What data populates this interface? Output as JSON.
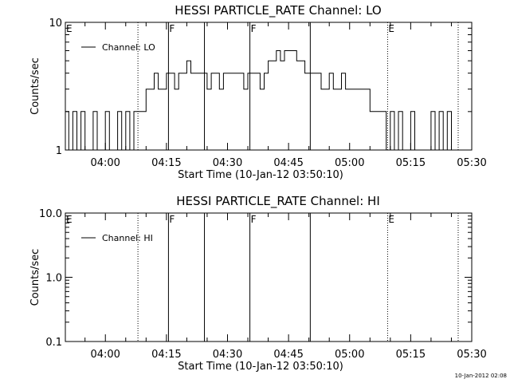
{
  "footer_timestamp": "10-Jan-2012 02:08",
  "chart_data": [
    {
      "type": "line",
      "title": "HESSI PARTICLE_RATE Channel: LO",
      "xlabel": "Start Time (10-Jan-12 03:50:10)",
      "ylabel": "Counts/sec",
      "y_scale": "log",
      "ylim": [
        1,
        10
      ],
      "y_ticks": [
        "1",
        "10"
      ],
      "xlim": [
        "03:50:10",
        "05:30:00"
      ],
      "x_ticks": [
        "04:00",
        "04:15",
        "04:30",
        "04:45",
        "05:00",
        "05:15",
        "05:30"
      ],
      "grid": false,
      "legend_position": "top-left",
      "series": [
        {
          "name": "Channel: LO",
          "x": [
            "03:50",
            "03:51",
            "03:52",
            "03:53",
            "03:54",
            "03:55",
            "03:56",
            "03:57",
            "03:58",
            "03:59",
            "04:00",
            "04:01",
            "04:02",
            "04:03",
            "04:04",
            "04:05",
            "04:06",
            "04:07",
            "04:08",
            "04:09",
            "04:10",
            "04:11",
            "04:12",
            "04:13",
            "04:14",
            "04:15",
            "04:16",
            "04:17",
            "04:18",
            "04:19",
            "04:20",
            "04:21",
            "04:22",
            "04:23",
            "04:24",
            "04:25",
            "04:26",
            "04:27",
            "04:28",
            "04:29",
            "04:30",
            "04:31",
            "04:32",
            "04:33",
            "04:34",
            "04:35",
            "04:36",
            "04:37",
            "04:38",
            "04:39",
            "04:40",
            "04:41",
            "04:42",
            "04:43",
            "04:44",
            "04:45",
            "04:46",
            "04:47",
            "04:48",
            "04:49",
            "04:50",
            "04:51",
            "04:52",
            "04:53",
            "04:54",
            "04:55",
            "04:56",
            "04:57",
            "04:58",
            "04:59",
            "05:00",
            "05:01",
            "05:02",
            "05:03",
            "05:04",
            "05:05",
            "05:06",
            "05:07",
            "05:08",
            "05:09",
            "05:10",
            "05:11",
            "05:12",
            "05:13",
            "05:14",
            "05:15",
            "05:16",
            "05:17",
            "05:18",
            "05:19",
            "05:20",
            "05:21",
            "05:22",
            "05:23",
            "05:24",
            "05:25"
          ],
          "values": [
            2,
            1,
            2,
            1,
            2,
            1,
            1,
            2,
            1,
            1,
            2,
            1,
            1,
            2,
            1,
            2,
            1,
            2,
            2,
            2,
            3,
            3,
            4,
            3,
            3,
            4,
            4,
            3,
            4,
            4,
            5,
            4,
            4,
            4,
            4,
            3,
            4,
            4,
            3,
            4,
            4,
            4,
            4,
            4,
            3,
            4,
            4,
            4,
            3,
            4,
            5,
            5,
            6,
            5,
            6,
            6,
            6,
            5,
            5,
            4,
            4,
            4,
            4,
            3,
            3,
            4,
            3,
            3,
            4,
            3,
            3,
            3,
            3,
            3,
            3,
            2,
            2,
            2,
            2,
            1,
            2,
            1,
            2,
            1,
            1,
            2,
            1,
            1,
            1,
            1,
            2,
            1,
            2,
            1,
            2,
            1
          ]
        }
      ],
      "markers": [
        {
          "time": "03:50:10",
          "label": "E",
          "style": "none"
        },
        {
          "time": "04:08:00",
          "label": "",
          "style": "dotted"
        },
        {
          "time": "04:15:30",
          "label": "F",
          "style": "solid"
        },
        {
          "time": "04:24:20",
          "label": "",
          "style": "solid"
        },
        {
          "time": "04:35:30",
          "label": "F",
          "style": "solid"
        },
        {
          "time": "04:50:20",
          "label": "",
          "style": "solid"
        },
        {
          "time": "05:09:20",
          "label": "E",
          "style": "dotted"
        },
        {
          "time": "05:26:40",
          "label": "",
          "style": "dotted"
        }
      ]
    },
    {
      "type": "line",
      "title": "HESSI PARTICLE_RATE Channel: HI",
      "xlabel": "Start Time (10-Jan-12 03:50:10)",
      "ylabel": "Counts/sec",
      "y_scale": "log",
      "ylim": [
        0.1,
        10
      ],
      "y_ticks": [
        "0.1",
        "1.0",
        "10.0"
      ],
      "xlim": [
        "03:50:10",
        "05:30:00"
      ],
      "x_ticks": [
        "04:00",
        "04:15",
        "04:30",
        "04:45",
        "05:00",
        "05:15",
        "05:30"
      ],
      "grid": false,
      "legend_position": "top-left",
      "series": [
        {
          "name": "Channel: HI",
          "x": [],
          "values": []
        }
      ],
      "markers": [
        {
          "time": "03:50:10",
          "label": "E",
          "style": "none"
        },
        {
          "time": "04:08:00",
          "label": "",
          "style": "dotted"
        },
        {
          "time": "04:15:30",
          "label": "F",
          "style": "solid"
        },
        {
          "time": "04:24:20",
          "label": "",
          "style": "solid"
        },
        {
          "time": "04:35:30",
          "label": "F",
          "style": "solid"
        },
        {
          "time": "04:50:20",
          "label": "",
          "style": "solid"
        },
        {
          "time": "05:09:20",
          "label": "E",
          "style": "dotted"
        },
        {
          "time": "05:26:40",
          "label": "",
          "style": "dotted"
        }
      ]
    }
  ]
}
